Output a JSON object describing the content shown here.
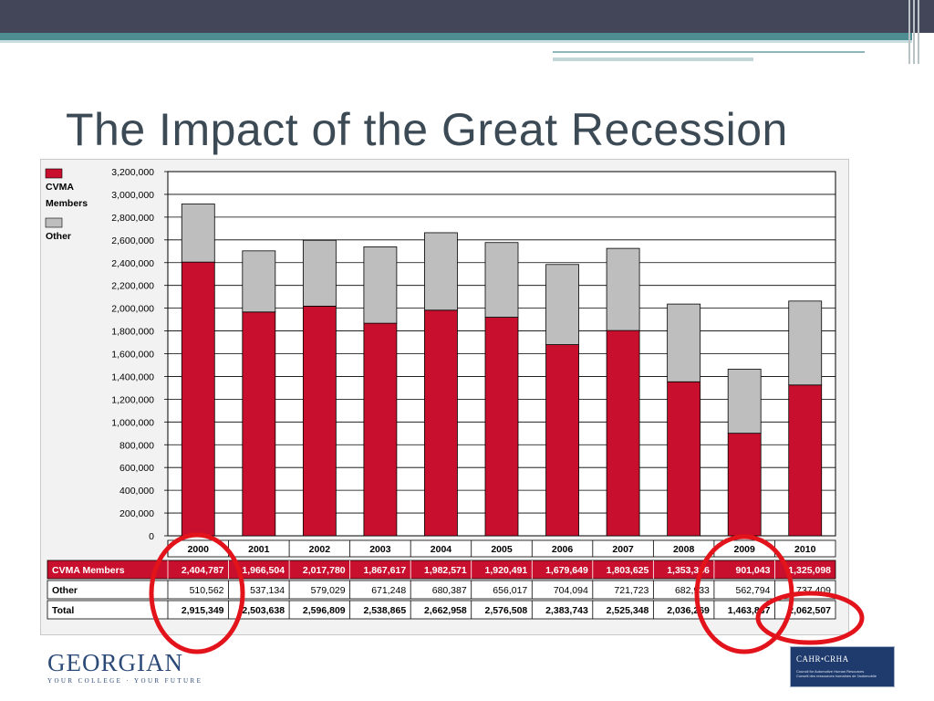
{
  "slide": {
    "title": "The Impact of the Great Recession"
  },
  "colors": {
    "cvma": "#c8102e",
    "other": "#bebebe",
    "annotation_circle": "#e3131b",
    "header_bar": "#434659",
    "accent_teal": "#4e8e93"
  },
  "chart_data": {
    "type": "bar",
    "stacked": true,
    "categories": [
      "2000",
      "2001",
      "2002",
      "2003",
      "2004",
      "2005",
      "2006",
      "2007",
      "2008",
      "2009",
      "2010"
    ],
    "series": [
      {
        "name": "CVMA Members",
        "values": [
          2404787,
          1966504,
          2017780,
          1867617,
          1982571,
          1920491,
          1679649,
          1803625,
          1353336,
          901043,
          1325098
        ]
      },
      {
        "name": "Other",
        "values": [
          510562,
          537134,
          579029,
          671248,
          680387,
          656017,
          704094,
          721723,
          682933,
          562794,
          737409
        ]
      }
    ],
    "ylim": [
      0,
      3200000
    ],
    "y_ticks": [
      "0",
      "200,000",
      "400,000",
      "600,000",
      "800,000",
      "1,000,000",
      "1,200,000",
      "1,400,000",
      "1,600,000",
      "1,800,000",
      "2,000,000",
      "2,200,000",
      "2,400,000",
      "2,600,000",
      "2,800,000",
      "3,000,000",
      "3,200,000"
    ],
    "legend": {
      "position": "top-left",
      "entries": [
        "CVMA Members",
        "Other"
      ]
    },
    "grid": true,
    "table": {
      "rows": [
        {
          "label": "CVMA Members",
          "cells": [
            "2,404,787",
            "1,966,504",
            "2,017,780",
            "1,867,617",
            "1,982,571",
            "1,920,491",
            "1,679,649",
            "1,803,625",
            "1,353,336",
            "901,043",
            "1,325,098"
          ]
        },
        {
          "label": "Other",
          "cells": [
            "510,562",
            "537,134",
            "579,029",
            "671,248",
            "680,387",
            "656,017",
            "704,094",
            "721,723",
            "682,933",
            "562,794",
            "737,409"
          ]
        },
        {
          "label": "Total",
          "cells": [
            "2,915,349",
            "2,503,638",
            "2,596,809",
            "2,538,865",
            "2,662,958",
            "2,576,508",
            "2,383,743",
            "2,525,348",
            "2,036,269",
            "1,463,837",
            "2,062,507"
          ]
        }
      ]
    }
  },
  "footer": {
    "left_logo_name": "GEORGIAN",
    "left_logo_tagline": "YOUR COLLEGE · YOUR FUTURE",
    "right_logo_brand": "CAHR•CRHA",
    "right_logo_sub1": "Council for Automotive Human Resources",
    "right_logo_sub2": "Conseil des ressources humaines de l'automobile"
  }
}
